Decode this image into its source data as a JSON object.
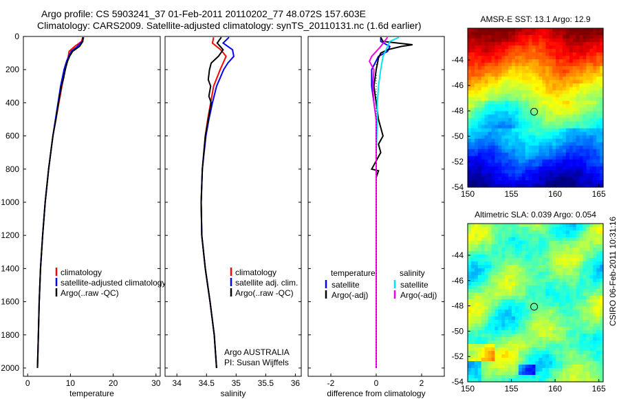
{
  "header": {
    "line1": "Argo profile: CS 5903241_37 01-Feb-2011 20110202_77 48.072S 157.603E",
    "line2": "Climatology: CARS2009. Satellite-adjusted climatology: synTS_20110131.nc (1.6d earlier)"
  },
  "footer_label": "CSIRO 06-Feb-2011 10:31:16",
  "colors": {
    "climatology": "#ff0000",
    "satellite": "#0000ff",
    "argo": "#000000",
    "sat_diff": "#00e5ee",
    "argo_diff": "#ee00ee"
  },
  "chart_data": [
    {
      "type": "line",
      "title": "",
      "xlabel": "temperature",
      "ylabel": "",
      "xlim": [
        -1,
        31
      ],
      "ylim": [
        2050,
        0
      ],
      "xticks": [
        0,
        10,
        20,
        30
      ],
      "yticks": [
        0,
        200,
        400,
        600,
        800,
        1000,
        1200,
        1400,
        1600,
        1800,
        2000
      ],
      "legend": [
        "climatology",
        "satellite-adjusted climatology",
        "Argo(..raw -QC)"
      ],
      "series": [
        {
          "name": "climatology",
          "color": "climatology",
          "depth": [
            5,
            30,
            60,
            90,
            120,
            150,
            200,
            300,
            400,
            500,
            600,
            800,
            1000,
            1200,
            1400,
            1600,
            1800,
            2000
          ],
          "values": [
            12.9,
            12.6,
            11.0,
            9.7,
            9.5,
            9.2,
            8.8,
            8.0,
            7.3,
            6.6,
            5.9,
            4.9,
            4.1,
            3.5,
            3.0,
            2.7,
            2.5,
            2.3
          ]
        },
        {
          "name": "satellite-adjusted climatology",
          "color": "satellite",
          "depth": [
            5,
            30,
            60,
            90,
            120,
            150,
            200,
            300,
            400,
            500,
            600,
            800,
            1000,
            1200,
            1400,
            1600,
            1800,
            2000
          ],
          "values": [
            13.1,
            12.8,
            11.6,
            10.2,
            9.6,
            9.1,
            8.5,
            7.7,
            7.1,
            6.5,
            5.9,
            4.9,
            4.1,
            3.5,
            3.0,
            2.7,
            2.5,
            2.3
          ]
        },
        {
          "name": "Argo(..raw -QC)",
          "color": "argo",
          "depth": [
            5,
            30,
            60,
            90,
            120,
            150,
            200,
            250,
            300,
            400,
            500,
            600,
            800,
            1000,
            1200,
            1400,
            1600,
            1800,
            2000
          ],
          "values": [
            12.9,
            12.9,
            12.1,
            10.5,
            9.8,
            9.3,
            8.8,
            8.4,
            7.9,
            7.2,
            6.6,
            5.9,
            4.9,
            4.1,
            3.5,
            3.0,
            2.7,
            2.5,
            2.3
          ]
        }
      ]
    },
    {
      "type": "line",
      "title": "",
      "xlabel": "salinity",
      "ylabel": "",
      "xlim": [
        33.8,
        36.1
      ],
      "ylim": [
        2050,
        0
      ],
      "xticks": [
        34,
        34.5,
        35,
        35.5,
        36
      ],
      "legend": [
        "climatology",
        "satellite adj. clim.",
        "Argo(..raw -QC)"
      ],
      "annotation": [
        "Argo AUSTRALIA",
        "PI: Susan Wijffels"
      ],
      "series": [
        {
          "name": "climatology",
          "color": "climatology",
          "depth": [
            5,
            40,
            80,
            120,
            160,
            200,
            300,
            400,
            500,
            600,
            800,
            1000,
            1200,
            1400,
            1600,
            1800,
            2000
          ],
          "values": [
            34.62,
            34.6,
            34.74,
            34.83,
            34.78,
            34.73,
            34.62,
            34.57,
            34.52,
            34.48,
            34.43,
            34.41,
            34.42,
            34.48,
            34.56,
            34.63,
            34.67
          ]
        },
        {
          "name": "satellite adj. clim.",
          "color": "satellite",
          "depth": [
            5,
            40,
            80,
            120,
            160,
            200,
            300,
            400,
            500,
            600,
            800,
            1000,
            1200,
            1400,
            1600,
            1800,
            2000
          ],
          "values": [
            34.88,
            34.78,
            34.94,
            34.96,
            34.86,
            34.79,
            34.67,
            34.6,
            34.54,
            34.49,
            34.43,
            34.41,
            34.42,
            34.48,
            34.56,
            34.63,
            34.67
          ]
        },
        {
          "name": "Argo(..raw -QC)",
          "color": "argo",
          "depth": [
            5,
            40,
            80,
            120,
            160,
            200,
            260,
            300,
            360,
            400,
            500,
            600,
            800,
            1000,
            1200,
            1400,
            1600,
            1800,
            2000
          ],
          "values": [
            34.75,
            34.68,
            34.78,
            34.7,
            34.58,
            34.55,
            34.53,
            34.57,
            34.54,
            34.58,
            34.53,
            34.48,
            34.43,
            34.41,
            34.42,
            34.48,
            34.56,
            34.63,
            34.67
          ]
        }
      ]
    },
    {
      "type": "line",
      "title": "",
      "xlabel": "difference from climatology",
      "ylabel": "",
      "xlim": [
        -3,
        3
      ],
      "ylim": [
        2050,
        0
      ],
      "xticks": [
        -2,
        0,
        2
      ],
      "legend_left_title": "temperature",
      "legend_right_title": "salinity",
      "legend": [
        "satellite",
        "Argo(-adj)",
        "satellite",
        "Argo(-adj)"
      ],
      "series": [
        {
          "name": "temperature satellite",
          "color": "satellite",
          "depth": [
            5,
            30,
            60,
            90,
            120,
            200,
            300,
            400,
            500,
            700,
            1000,
            1500,
            2000
          ],
          "values": [
            0.2,
            0.2,
            0.6,
            0.5,
            0.1,
            -0.2,
            -0.2,
            -0.1,
            0,
            0,
            0,
            0,
            0
          ]
        },
        {
          "name": "temperature Argo(-adj)",
          "color": "argo",
          "depth": [
            5,
            30,
            50,
            60,
            80,
            100,
            130,
            200,
            300,
            400,
            500,
            600,
            650,
            700,
            800,
            810,
            850,
            1000,
            1400,
            1800,
            2000
          ],
          "values": [
            0.2,
            0.3,
            1.6,
            1.1,
            0.5,
            0.2,
            0.1,
            0,
            -0.1,
            0,
            0.1,
            0.3,
            0.1,
            0.2,
            -0.2,
            0.1,
            0,
            0,
            0,
            0,
            0
          ]
        },
        {
          "name": "salinity satellite",
          "color": "sat_diff",
          "depth": [
            5,
            30,
            60,
            120,
            200,
            300,
            400,
            500,
            700,
            1000,
            1500,
            2000
          ],
          "values": [
            1.0,
            0.6,
            0.5,
            0.3,
            0.2,
            0.1,
            0.05,
            0.05,
            0,
            0,
            0,
            0
          ]
        },
        {
          "name": "salinity Argo(-adj)",
          "color": "argo_diff",
          "depth": [
            5,
            60,
            120,
            150,
            200,
            300,
            400,
            500,
            700,
            1000,
            1500,
            2000
          ],
          "values": [
            0.5,
            0.2,
            -0.2,
            -0.3,
            -0.1,
            -0.15,
            -0.1,
            0,
            0,
            0,
            0,
            0
          ]
        }
      ]
    },
    {
      "type": "heatmap",
      "title": "AMSR-E SST: 13.1 Argo: 12.9",
      "xlabel": "",
      "ylabel": "",
      "xlim": [
        150,
        165.5
      ],
      "ylim": [
        -54,
        -41.5
      ],
      "xticks": [
        150,
        155,
        160,
        165
      ],
      "yticks": [
        -44,
        -46,
        -48,
        -50,
        -52,
        -54
      ],
      "marker": {
        "lon": 157.6,
        "lat": -48.07
      }
    },
    {
      "type": "heatmap",
      "title": "Altimetric SLA: 0.039 Argo: 0.054",
      "xlabel": "",
      "ylabel": "",
      "xlim": [
        150,
        165.5
      ],
      "ylim": [
        -54,
        -41.5
      ],
      "xticks": [
        150,
        155,
        160,
        165
      ],
      "yticks": [
        -44,
        -46,
        -48,
        -50,
        -52,
        -54
      ],
      "marker": {
        "lon": 157.6,
        "lat": -48.07
      }
    }
  ]
}
